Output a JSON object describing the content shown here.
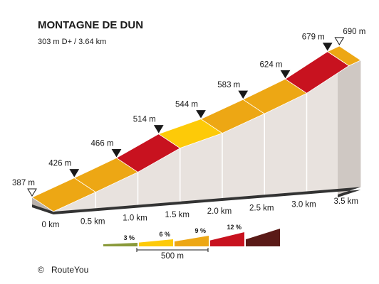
{
  "chart_data": {
    "type": "area",
    "title": "MONTAGNE DE DUN",
    "subtitle": "303 m D+ / 3.64 km",
    "x_unit": "km",
    "x_ticks": [
      "0 km",
      "0.5 km",
      "1.0 km",
      "1.5 km",
      "2.0 km",
      "2.5 km",
      "3.0 km",
      "3.5 km"
    ],
    "start_label": "387 m",
    "end_label": "690 m",
    "points": [
      {
        "x": 0.0,
        "elevation": 387,
        "label": "387 m"
      },
      {
        "x": 0.5,
        "elevation": 426,
        "label": "426 m"
      },
      {
        "x": 1.0,
        "elevation": 466,
        "label": "466 m"
      },
      {
        "x": 1.5,
        "elevation": 514,
        "label": "514 m"
      },
      {
        "x": 2.0,
        "elevation": 544,
        "label": "544 m"
      },
      {
        "x": 2.5,
        "elevation": 583,
        "label": "583 m"
      },
      {
        "x": 3.0,
        "elevation": 624,
        "label": "624 m"
      },
      {
        "x": 3.5,
        "elevation": 679,
        "label": "679 m"
      },
      {
        "x": 3.64,
        "elevation": 690,
        "label": "690 m"
      }
    ],
    "segment_colors": [
      "#eda714",
      "#eda714",
      "#c8121f",
      "#fdca08",
      "#eda714",
      "#eda714",
      "#c8121f",
      "#eda714"
    ],
    "legend": {
      "items": [
        {
          "label": "3 %",
          "color": "#8a9a3a"
        },
        {
          "label": "6 %",
          "color": "#fdca08"
        },
        {
          "label": "9 %",
          "color": "#eda714"
        },
        {
          "label": "12 %",
          "color": "#c8121f"
        },
        {
          "label": "",
          "color": "#5a1a17"
        }
      ],
      "scale_label": "500 m"
    }
  },
  "footer": {
    "copyright_symbol": "©",
    "brand": "RouteYou"
  }
}
